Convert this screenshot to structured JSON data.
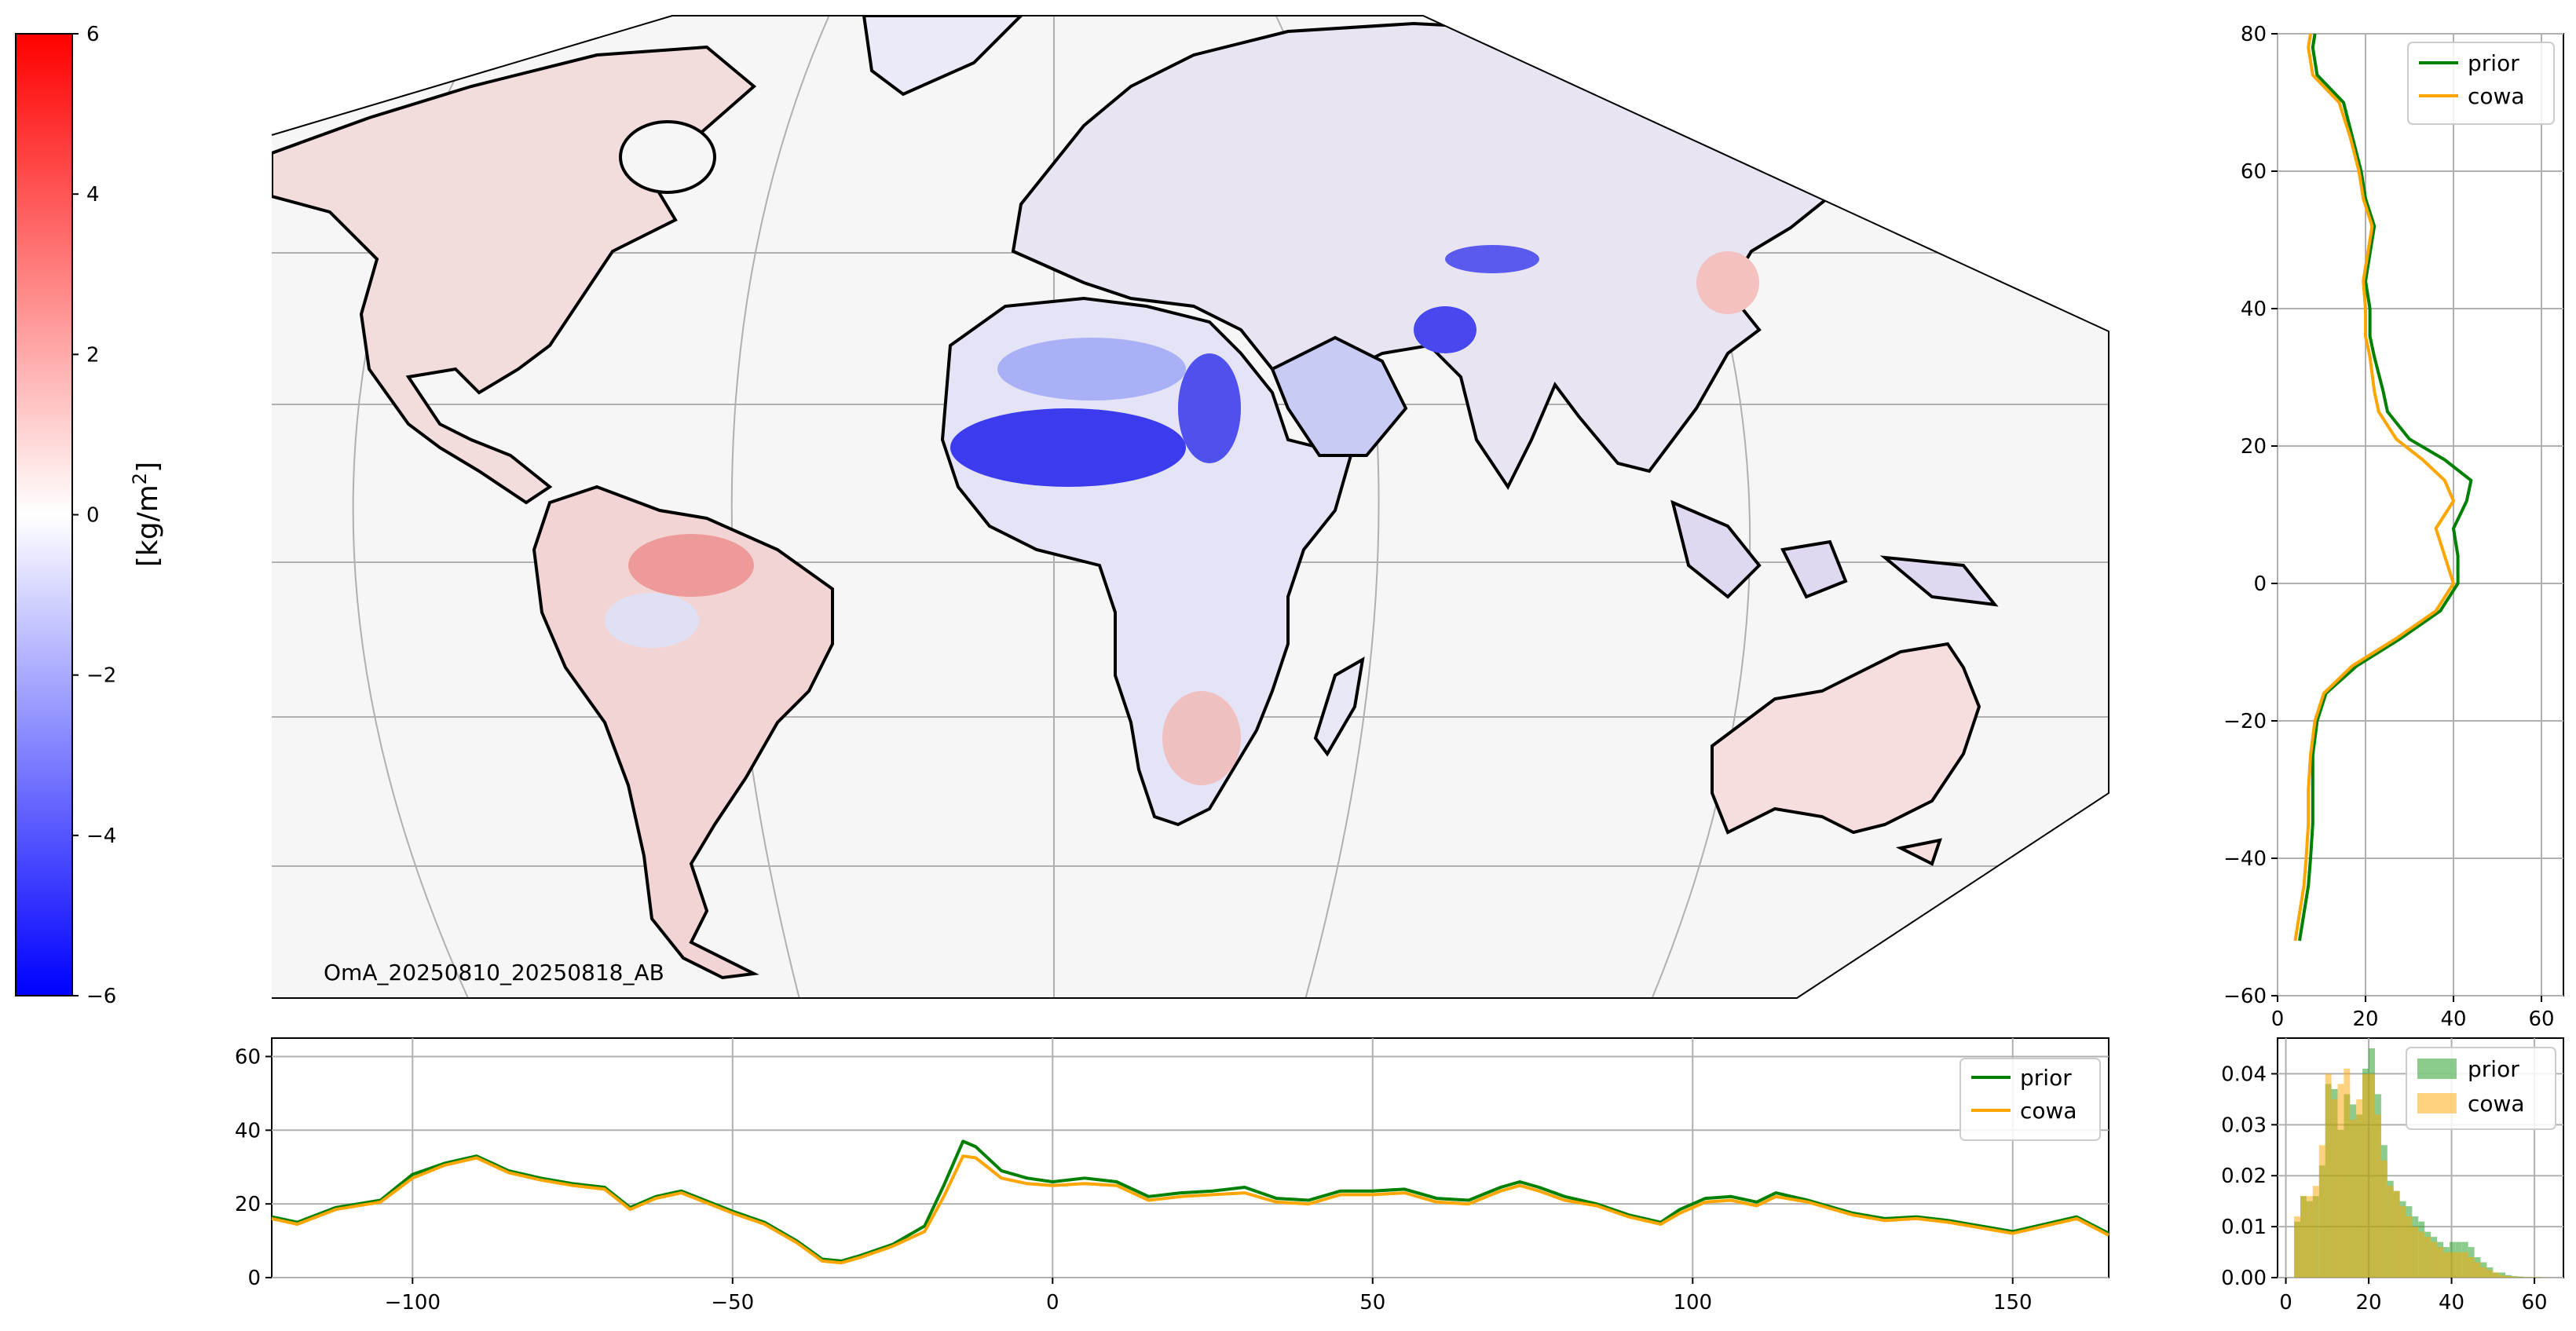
{
  "colorbar": {
    "label": "[kg/m²]",
    "label_base": "[kg/m",
    "label_sup": "2",
    "label_end": "]",
    "ticks": [
      "6",
      "4",
      "2",
      "0",
      "−2",
      "−4",
      "−6"
    ],
    "vmin": -6,
    "vmax": 6,
    "colors": {
      "max": "#ff0000",
      "mid": "#ffffff",
      "min": "#0000ff"
    }
  },
  "map": {
    "annotation": "OmA_20250810_20250818_AB",
    "background": "#f6f6f6",
    "grid_color": "#b0b0b0",
    "coastline_color": "#000000"
  },
  "chart_data": [
    {
      "name": "longitude-profile",
      "type": "line",
      "xlim": [
        -122,
        165
      ],
      "ylim": [
        0,
        65
      ],
      "xticks": [
        "−100",
        "−50",
        "0",
        "50",
        "100",
        "150"
      ],
      "xtick_values": [
        -100,
        -50,
        0,
        50,
        100,
        150
      ],
      "yticks": [
        "0",
        "20",
        "40",
        "60"
      ],
      "ytick_values": [
        0,
        20,
        40,
        60
      ],
      "grid": true,
      "legend": "top-right",
      "series": [
        {
          "name": "prior",
          "color": "#008000",
          "x": [
            -122,
            -118,
            -112,
            -105,
            -100,
            -95,
            -90,
            -85,
            -80,
            -75,
            -70,
            -66,
            -62,
            -58,
            -50,
            -45,
            -40,
            -36,
            -33,
            -30,
            -25,
            -20,
            -17,
            -14,
            -12,
            -8,
            -4,
            0,
            5,
            10,
            15,
            20,
            25,
            30,
            35,
            40,
            45,
            50,
            55,
            60,
            65,
            70,
            73,
            76,
            80,
            85,
            90,
            95,
            98,
            102,
            106,
            110,
            113,
            118,
            125,
            130,
            135,
            140,
            145,
            150,
            155,
            160,
            165
          ],
          "y": [
            16.5,
            15,
            19,
            21,
            28,
            31,
            33,
            29,
            27,
            25.5,
            24.5,
            19,
            22,
            23.5,
            18,
            15,
            10,
            5,
            4.5,
            6,
            9,
            14,
            25,
            37,
            35.5,
            29,
            27,
            26,
            27,
            26,
            22,
            23,
            23.5,
            24.5,
            21.5,
            21,
            23.5,
            23.5,
            24,
            21.5,
            21,
            24.5,
            26,
            24.5,
            22,
            20,
            17,
            15,
            18.5,
            21.5,
            22,
            20.5,
            23,
            21,
            17.5,
            16,
            16.5,
            15.5,
            14,
            12.5,
            14.5,
            16.5,
            12
          ]
        },
        {
          "name": "cowa",
          "color": "#ffa500",
          "x": [
            -122,
            -118,
            -112,
            -105,
            -100,
            -95,
            -90,
            -85,
            -80,
            -75,
            -70,
            -66,
            -62,
            -58,
            -50,
            -45,
            -40,
            -36,
            -33,
            -30,
            -25,
            -20,
            -17,
            -14,
            -12,
            -8,
            -4,
            0,
            5,
            10,
            15,
            20,
            25,
            30,
            35,
            40,
            45,
            50,
            55,
            60,
            65,
            70,
            73,
            76,
            80,
            85,
            90,
            95,
            98,
            102,
            106,
            110,
            113,
            118,
            125,
            130,
            135,
            140,
            145,
            150,
            155,
            160,
            165
          ],
          "y": [
            16,
            14.5,
            18.5,
            20.5,
            27,
            30.5,
            32.5,
            28.5,
            26.5,
            25,
            24,
            18.5,
            21.5,
            23,
            17.5,
            14.5,
            9.5,
            4.5,
            4,
            5.5,
            8.5,
            12.5,
            22,
            33,
            32.5,
            27,
            25.5,
            25,
            25.5,
            25,
            21,
            22,
            22.5,
            23,
            20.5,
            20,
            22.5,
            22.5,
            23,
            20.5,
            20,
            23.5,
            25,
            23.5,
            21,
            19.5,
            16.5,
            14.5,
            17.5,
            20.5,
            21,
            19.5,
            22,
            20.5,
            17,
            15.5,
            16,
            15,
            13.5,
            12,
            14,
            16,
            11.5
          ]
        }
      ]
    },
    {
      "name": "latitude-profile",
      "type": "line",
      "orientation": "horizontal",
      "xlim": [
        0,
        65
      ],
      "ylim": [
        -60,
        80
      ],
      "xticks": [
        "0",
        "20",
        "40",
        "60"
      ],
      "xtick_values": [
        0,
        20,
        40,
        60
      ],
      "yticks": [
        "80",
        "60",
        "40",
        "20",
        "0",
        "−20",
        "−40",
        "−60"
      ],
      "ytick_values": [
        80,
        60,
        40,
        20,
        0,
        -20,
        -40,
        -60
      ],
      "grid": true,
      "legend": "top-right",
      "series": [
        {
          "name": "prior",
          "color": "#008000",
          "lat": [
            -52,
            -48,
            -44,
            -40,
            -35,
            -30,
            -25,
            -20,
            -16,
            -12,
            -8,
            -4,
            0,
            4,
            8,
            12,
            15,
            18,
            21,
            25,
            28,
            33,
            36,
            40,
            44,
            48,
            52,
            56,
            60,
            65,
            70,
            74,
            78,
            80
          ],
          "value": [
            5,
            6,
            7,
            7.5,
            8,
            8,
            8,
            9,
            11,
            18,
            28,
            37,
            41,
            41,
            40,
            43,
            44,
            38,
            30,
            25,
            24,
            22,
            21,
            21,
            20,
            21,
            22,
            20,
            19,
            17,
            15,
            9,
            8,
            8.5
          ]
        },
        {
          "name": "cowa",
          "color": "#ffa500",
          "lat": [
            -52,
            -48,
            -44,
            -40,
            -35,
            -30,
            -25,
            -20,
            -16,
            -12,
            -8,
            -4,
            0,
            4,
            8,
            12,
            15,
            18,
            21,
            25,
            28,
            33,
            36,
            40,
            44,
            48,
            52,
            56,
            60,
            65,
            70,
            74,
            78,
            80
          ],
          "value": [
            4,
            5,
            6,
            6.5,
            7,
            7,
            7.5,
            8.5,
            10.5,
            17,
            27,
            36,
            40,
            38,
            36,
            40,
            38,
            33,
            27,
            23,
            22,
            21,
            20,
            20,
            19.5,
            20.5,
            21.5,
            19.5,
            18.5,
            16.5,
            14,
            8,
            7,
            7.5
          ]
        }
      ]
    },
    {
      "name": "histogram",
      "type": "bar",
      "xlim": [
        -2,
        67
      ],
      "ylim": [
        0,
        0.047
      ],
      "xticks": [
        "0",
        "20",
        "40",
        "60"
      ],
      "xtick_values": [
        0,
        20,
        40,
        60
      ],
      "yticks": [
        "0.00",
        "0.01",
        "0.02",
        "0.03",
        "0.04"
      ],
      "ytick_values": [
        0,
        0.01,
        0.02,
        0.03,
        0.04
      ],
      "grid": true,
      "legend": "top-right",
      "bin_start": 2,
      "bin_width": 1.5,
      "series": [
        {
          "name": "prior",
          "color": "#2ca02c",
          "opacity": 0.55,
          "values": [
            0.011,
            0.016,
            0.015,
            0.016,
            0.022,
            0.038,
            0.037,
            0.029,
            0.036,
            0.034,
            0.032,
            0.041,
            0.045,
            0.036,
            0.026,
            0.019,
            0.017,
            0.015,
            0.014,
            0.012,
            0.011,
            0.009,
            0.008,
            0.007,
            0.006,
            0.007,
            0.007,
            0.007,
            0.006,
            0.004,
            0.003,
            0.002,
            0.001,
            0.001,
            0.0005,
            0.0003,
            0.0002,
            0.0001,
            0.0001,
            0.0001
          ]
        },
        {
          "name": "cowa",
          "color": "#ffa500",
          "opacity": 0.5,
          "values": [
            0.012,
            0.016,
            0.016,
            0.018,
            0.026,
            0.04,
            0.035,
            0.038,
            0.041,
            0.031,
            0.035,
            0.04,
            0.04,
            0.032,
            0.023,
            0.018,
            0.017,
            0.014,
            0.012,
            0.01,
            0.009,
            0.008,
            0.007,
            0.006,
            0.005,
            0.005,
            0.005,
            0.005,
            0.004,
            0.003,
            0.002,
            0.0015,
            0.001,
            0.0005,
            0.0003,
            0.0002,
            0.0001,
            0.0001,
            0.0001,
            0.0001
          ]
        }
      ]
    }
  ]
}
